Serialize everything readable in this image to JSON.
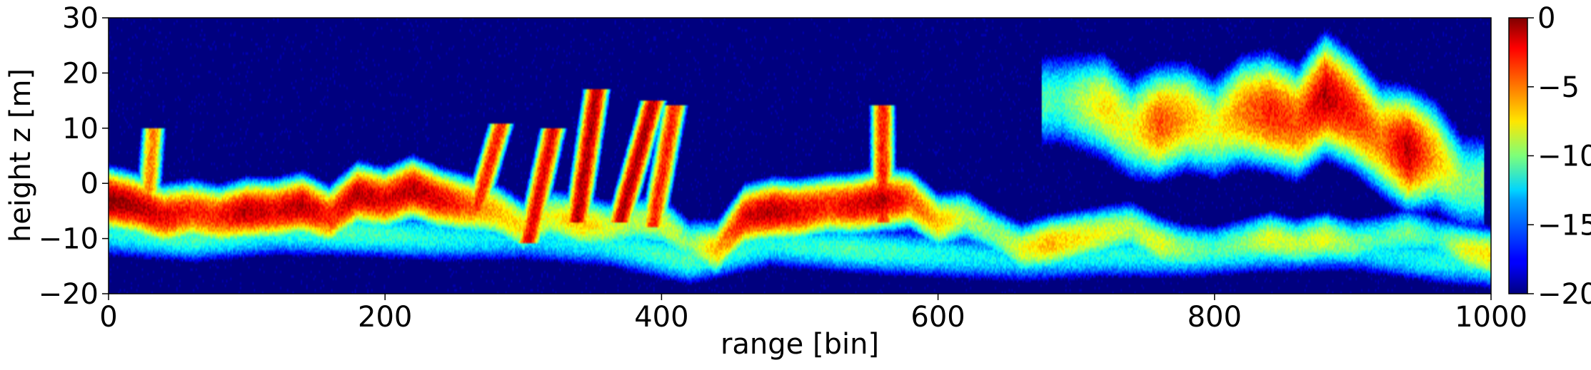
{
  "chart_data": {
    "type": "heatmap",
    "xlabel": "range [bin]",
    "ylabel": "height z [m]",
    "xlim": [
      0,
      1000
    ],
    "ylim": [
      -20,
      30
    ],
    "x_ticks": [
      0,
      200,
      400,
      600,
      800,
      1000
    ],
    "y_ticks": [
      -20,
      -10,
      0,
      10,
      20,
      30
    ],
    "colorbar": {
      "colormap": "jet",
      "range": [
        -20,
        0
      ],
      "ticks": [
        0,
        -5,
        -10,
        -15,
        -20
      ],
      "tick_labels": [
        "0",
        "−5",
        "−10",
        "−15",
        "−20"
      ]
    },
    "y_tick_labels": [
      "−20",
      "−10",
      "0",
      "10",
      "20",
      "30"
    ],
    "background_value": -20,
    "layers": [
      {
        "name": "ground",
        "points": [
          [
            0,
            -3,
            0
          ],
          [
            20,
            -4,
            -1
          ],
          [
            40,
            -6,
            -2
          ],
          [
            60,
            -5,
            -3
          ],
          [
            80,
            -6,
            -3
          ],
          [
            100,
            -5,
            -1
          ],
          [
            120,
            -5,
            -2
          ],
          [
            140,
            -4,
            -1
          ],
          [
            160,
            -6,
            -3
          ],
          [
            180,
            -2,
            -1
          ],
          [
            200,
            -3,
            -2
          ],
          [
            220,
            -1,
            -1
          ],
          [
            240,
            -3,
            -2
          ],
          [
            260,
            -4,
            -4
          ],
          [
            280,
            -5,
            -6
          ],
          [
            300,
            -8,
            -7
          ],
          [
            320,
            -6,
            -8
          ],
          [
            340,
            -7,
            -6
          ],
          [
            360,
            -8,
            -8
          ],
          [
            380,
            -7,
            -9
          ],
          [
            400,
            -7,
            -8
          ],
          [
            420,
            -11,
            -10
          ],
          [
            440,
            -12,
            -6
          ],
          [
            460,
            -6,
            -2
          ],
          [
            480,
            -5,
            -1
          ],
          [
            500,
            -5,
            -2
          ],
          [
            520,
            -4,
            -3
          ],
          [
            540,
            -4,
            -2
          ],
          [
            560,
            -3,
            -1
          ],
          [
            580,
            -3,
            -4
          ],
          [
            600,
            -7,
            -6
          ],
          [
            620,
            -6,
            -9
          ],
          [
            640,
            -9,
            -10
          ],
          [
            660,
            -12,
            -8
          ],
          [
            680,
            -11,
            -6
          ],
          [
            700,
            -10,
            -7
          ],
          [
            720,
            -9,
            -8
          ],
          [
            740,
            -8,
            -9
          ],
          [
            760,
            -11,
            -8
          ],
          [
            780,
            -12,
            -10
          ],
          [
            800,
            -12,
            -11
          ],
          [
            820,
            -11,
            -10
          ],
          [
            840,
            -10,
            -8
          ],
          [
            860,
            -11,
            -9
          ],
          [
            880,
            -10,
            -8
          ],
          [
            900,
            -11,
            -10
          ],
          [
            920,
            -10,
            -11
          ],
          [
            940,
            -9,
            -10
          ],
          [
            960,
            -10,
            -12
          ],
          [
            980,
            -12,
            -8
          ],
          [
            1000,
            -13,
            -7
          ]
        ]
      },
      {
        "name": "ground-secondary",
        "points": [
          [
            0,
            -9,
            -12
          ],
          [
            60,
            -10,
            -11
          ],
          [
            120,
            -9,
            -12
          ],
          [
            180,
            -9,
            -11
          ],
          [
            240,
            -10,
            -12
          ],
          [
            300,
            -10,
            -13
          ],
          [
            360,
            -11,
            -12
          ],
          [
            420,
            -14,
            -11
          ],
          [
            480,
            -11,
            -12
          ],
          [
            540,
            -12,
            -11
          ],
          [
            600,
            -13,
            -12
          ],
          [
            660,
            -14,
            -13
          ],
          [
            720,
            -13,
            -12
          ],
          [
            780,
            -13,
            -12
          ],
          [
            840,
            -12,
            -12
          ],
          [
            900,
            -12,
            -13
          ],
          [
            960,
            -14,
            -12
          ],
          [
            1000,
            -15,
            -12
          ]
        ]
      },
      {
        "name": "canopy",
        "points": [
          [
            690,
            15,
            -11
          ],
          [
            720,
            14,
            -7
          ],
          [
            740,
            10,
            -8
          ],
          [
            760,
            11,
            -4
          ],
          [
            780,
            12,
            -6
          ],
          [
            800,
            10,
            -8
          ],
          [
            820,
            13,
            -5
          ],
          [
            840,
            13,
            -3
          ],
          [
            860,
            11,
            -4
          ],
          [
            880,
            16,
            -1
          ],
          [
            900,
            13,
            -3
          ],
          [
            920,
            8,
            -5
          ],
          [
            940,
            6,
            -1
          ],
          [
            960,
            5,
            -6
          ],
          [
            980,
            0,
            -10
          ]
        ]
      }
    ],
    "streaks": [
      {
        "x0": 340,
        "z0": -5,
        "x1": 352,
        "z1": 15,
        "value": -1
      },
      {
        "x0": 372,
        "z0": -5,
        "x1": 392,
        "z1": 13,
        "value": -1
      },
      {
        "x0": 395,
        "z0": -6,
        "x1": 408,
        "z1": 12,
        "value": -3
      },
      {
        "x0": 305,
        "z0": -9,
        "x1": 320,
        "z1": 8,
        "value": -2
      },
      {
        "x0": 268,
        "z0": -3,
        "x1": 282,
        "z1": 9,
        "value": -3
      },
      {
        "x0": 560,
        "z0": -5,
        "x1": 560,
        "z1": 12,
        "value": -3
      },
      {
        "x0": 28,
        "z0": -6,
        "x1": 32,
        "z1": 8,
        "value": -5
      }
    ]
  }
}
